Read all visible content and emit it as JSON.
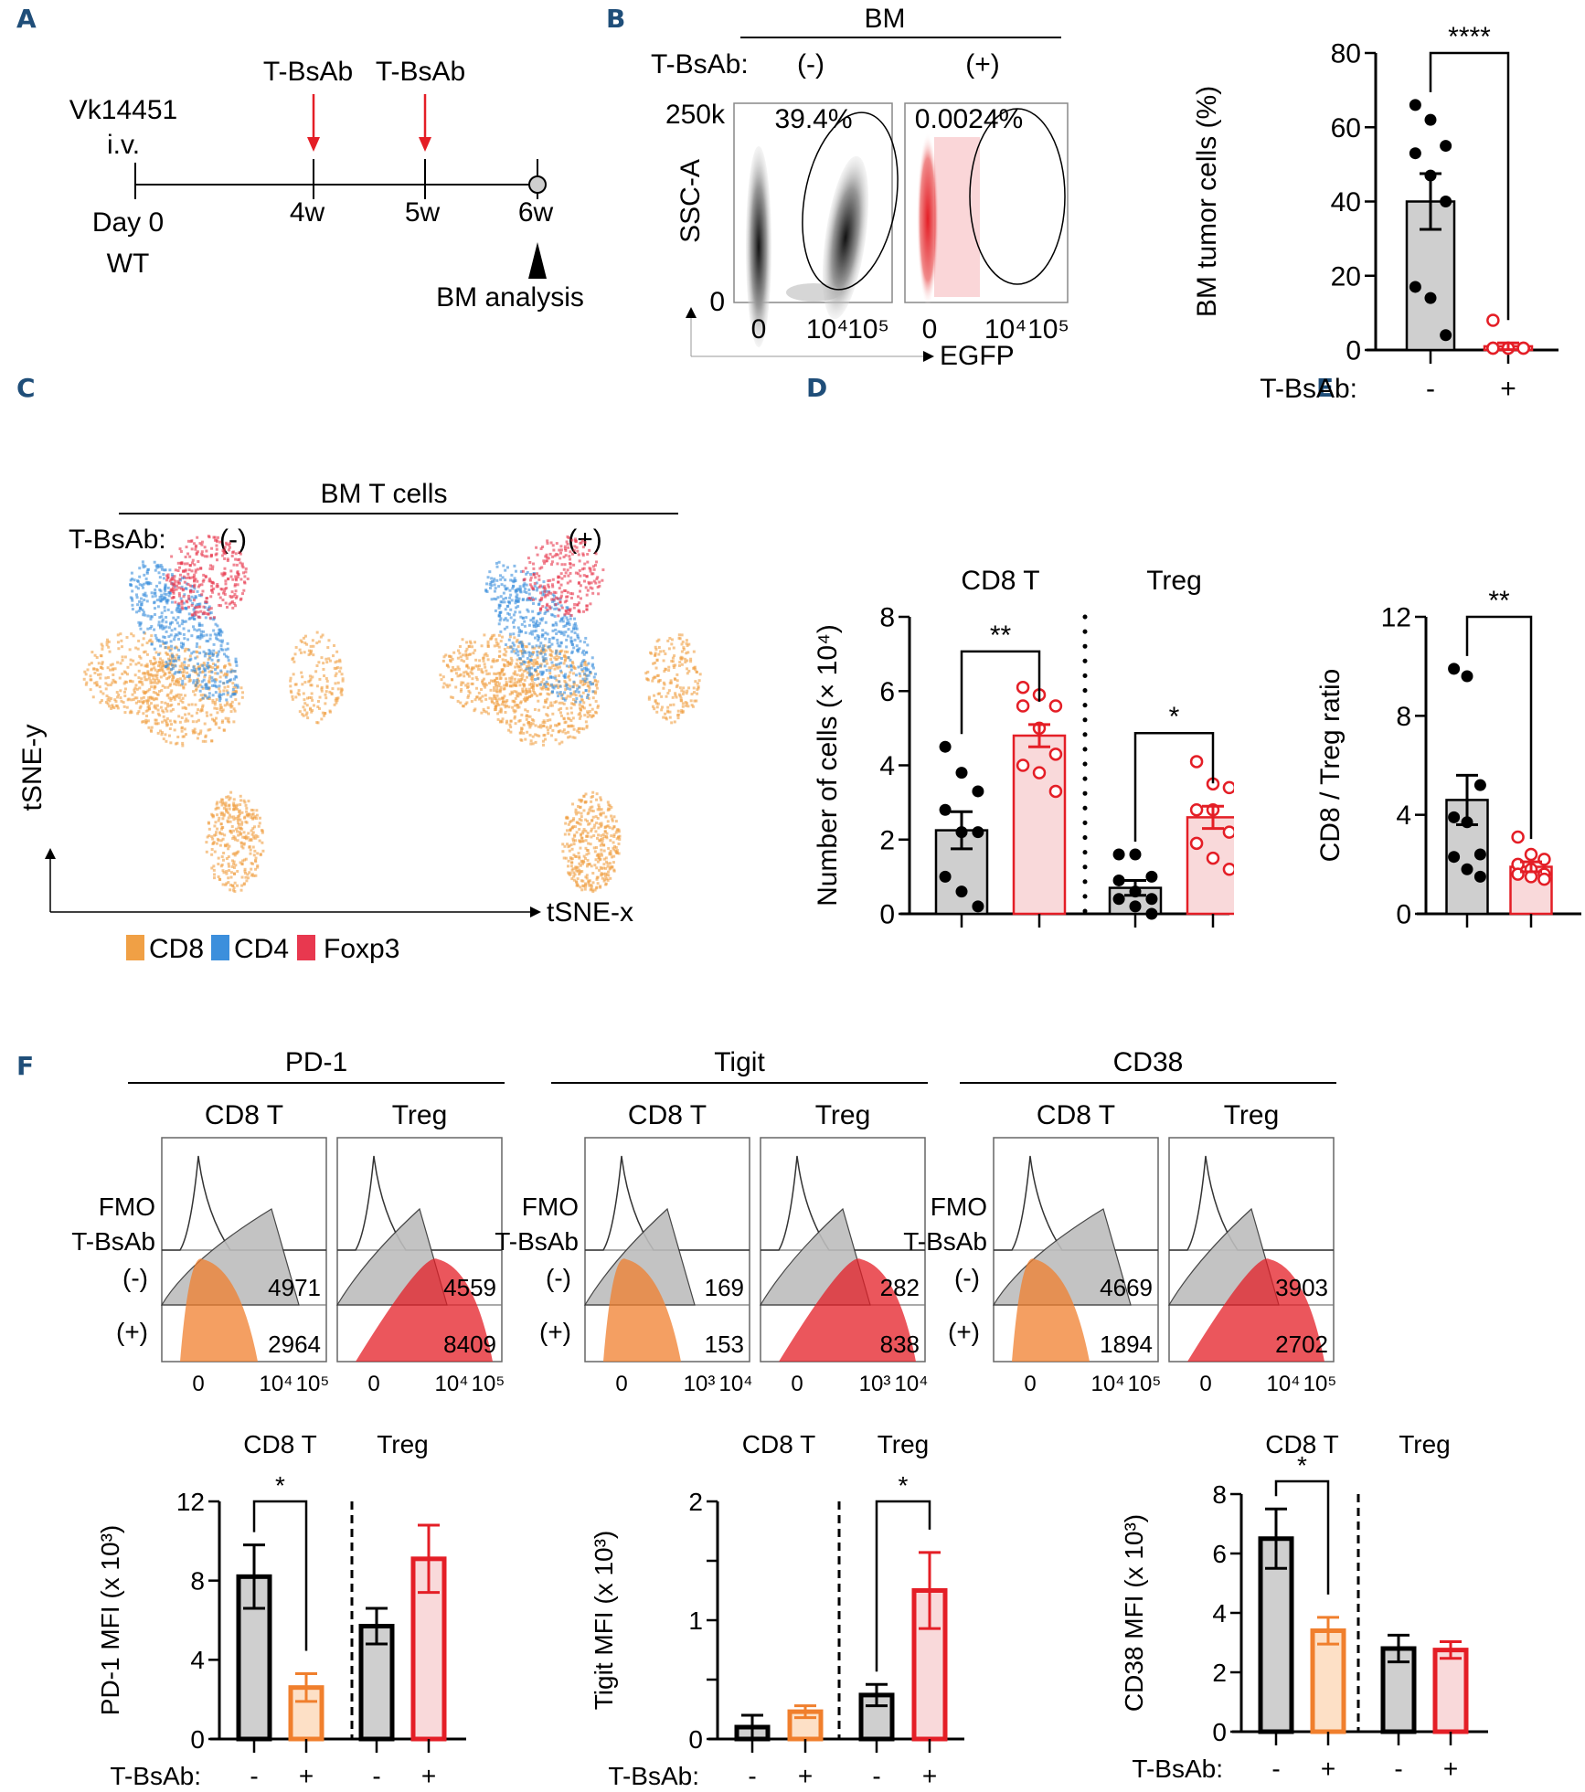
{
  "panels": {
    "A": "A",
    "B": "B",
    "C": "C",
    "D": "D",
    "E": "E",
    "F": "F"
  },
  "colors": {
    "grey_bar": "#cfcfcf",
    "red": "#e41e26",
    "red_fill": "#f9d9da",
    "orange": "#f07f2d",
    "orange_fill": "#fde0c6",
    "blue_label": "#1f4e79",
    "cd8": "#f0a045",
    "cd4": "#3c8fdc",
    "foxp3": "#e8384f"
  },
  "timeline": {
    "injection_label_1": "T-BsAb",
    "injection_label_2": "T-BsAb",
    "start_top": "Vk14451",
    "start_mid": "i.v.",
    "start_bottom_1": "Day 0",
    "start_bottom_2": "WT",
    "ticks": [
      "4w",
      "5w",
      "6w"
    ],
    "analysis_label": "BM analysis"
  },
  "flow_B": {
    "title": "BM",
    "treatment_label": "T-BsAb:",
    "conditions": [
      "(-)",
      "(+)"
    ],
    "gate_percent": [
      "39.4%",
      "0.0024%"
    ],
    "y_axis_label": "SSC-A",
    "y_ticks": [
      "250k",
      "0"
    ],
    "x_axis_label": "EGFP",
    "x_ticks": [
      "0",
      "10⁴",
      "10⁵"
    ]
  },
  "tsne_C": {
    "title": "BM T cells",
    "treatment_label": "T-BsAb:",
    "conditions": [
      "(-)",
      "(+)"
    ],
    "x_axis_label": "tSNE-x",
    "y_axis_label": "tSNE-y",
    "legend": [
      {
        "label": "CD8",
        "color": "#f0a045"
      },
      {
        "label": "CD4",
        "color": "#3c8fdc"
      },
      {
        "label": "Foxp3",
        "color": "#e8384f"
      }
    ]
  },
  "histograms_F": {
    "markers": [
      {
        "name": "PD-1",
        "x_ticks": [
          "0",
          "10⁴",
          "10⁵"
        ],
        "groups": [
          {
            "name": "CD8 T",
            "mfi_minus": "4971",
            "mfi_plus": "2964"
          },
          {
            "name": "Treg",
            "mfi_minus": "4559",
            "mfi_plus": "8409"
          }
        ]
      },
      {
        "name": "Tigit",
        "x_ticks": [
          "0",
          "10³",
          "10⁴"
        ],
        "groups": [
          {
            "name": "CD8 T",
            "mfi_minus": "169",
            "mfi_plus": "153"
          },
          {
            "name": "Treg",
            "mfi_minus": "282",
            "mfi_plus": "838"
          }
        ]
      },
      {
        "name": "CD38",
        "x_ticks": [
          "0",
          "10⁴",
          "10⁵"
        ],
        "groups": [
          {
            "name": "CD8 T",
            "mfi_minus": "4669",
            "mfi_plus": "1894"
          },
          {
            "name": "Treg",
            "mfi_minus": "3903",
            "mfi_plus": "2702"
          }
        ]
      }
    ],
    "row_labels": [
      "FMO",
      "T-BsAb",
      "(-)",
      "(+)"
    ]
  },
  "chart_data": [
    {
      "id": "B_bar",
      "type": "bar",
      "title": "",
      "ylabel": "BM tumor cells (%)",
      "xlabel": "T-BsAb:",
      "categories": [
        "-",
        "+"
      ],
      "values": [
        40,
        1
      ],
      "sem": [
        7.5,
        0.9
      ],
      "points": [
        [
          66,
          62,
          55,
          53,
          47,
          40,
          17,
          14,
          4
        ],
        [
          8,
          0.5,
          0.5,
          0.5,
          0.5,
          0.5,
          0.5,
          0.5
        ]
      ],
      "ylim": [
        0,
        80
      ],
      "yticks": [
        0,
        20,
        40,
        60,
        80
      ],
      "significance": [
        {
          "from": 0,
          "to": 1,
          "label": "****"
        }
      ]
    },
    {
      "id": "D_bar",
      "type": "bar",
      "ylabel": "Number of cells (× 10⁴)",
      "xlabel": "T-BsAb:",
      "group_labels": [
        "CD8 T",
        "Treg"
      ],
      "categories": [
        "-",
        "+",
        "-",
        "+"
      ],
      "values": [
        2.25,
        4.8,
        0.7,
        2.6
      ],
      "sem": [
        0.5,
        0.3,
        0.2,
        0.3
      ],
      "points": [
        [
          4.5,
          3.8,
          3.3,
          2.8,
          2.2,
          2.2,
          1.0,
          0.6,
          0.2
        ],
        [
          6.1,
          5.9,
          5.6,
          5.6,
          5.0,
          4.3,
          4.0,
          3.8,
          3.3
        ],
        [
          1.6,
          1.6,
          1.0,
          0.9,
          0.6,
          0.4,
          0.4,
          0.2,
          0.0
        ],
        [
          4.1,
          3.5,
          3.4,
          2.8,
          2.8,
          2.2,
          1.9,
          1.5,
          1.2
        ]
      ],
      "ylim": [
        0,
        8
      ],
      "yticks": [
        0,
        2,
        4,
        6,
        8
      ],
      "significance": [
        {
          "from": 0,
          "to": 1,
          "label": "**"
        },
        {
          "from": 2,
          "to": 3,
          "label": "*"
        }
      ]
    },
    {
      "id": "E_bar",
      "type": "bar",
      "ylabel": "CD8 / Treg ratio",
      "xlabel": "T-BsAb:",
      "categories": [
        "-",
        "+"
      ],
      "values": [
        4.6,
        1.9
      ],
      "sem": [
        1.0,
        0.2
      ],
      "points": [
        [
          9.9,
          9.6,
          5.2,
          3.9,
          3.7,
          2.4,
          2.3,
          1.8,
          1.5
        ],
        [
          3.1,
          2.4,
          2.2,
          2.0,
          1.8,
          1.6,
          1.6,
          1.5,
          1.4
        ]
      ],
      "ylim": [
        0,
        12
      ],
      "yticks": [
        0,
        4,
        8,
        12
      ],
      "significance": [
        {
          "from": 0,
          "to": 1,
          "label": "**"
        }
      ]
    },
    {
      "id": "F_PD1_bar",
      "type": "bar",
      "ylabel": "PD-1 MFI (x 10³)",
      "xlabel": "T-BsAb:",
      "group_labels": [
        "CD8 T",
        "Treg"
      ],
      "categories": [
        "-",
        "+",
        "-",
        "+"
      ],
      "values": [
        8.2,
        2.6,
        5.7,
        9.1
      ],
      "sem": [
        1.6,
        0.7,
        0.9,
        1.7
      ],
      "ylim": [
        0,
        12
      ],
      "yticks": [
        0,
        4,
        8,
        12
      ],
      "significance": [
        {
          "from": 0,
          "to": 1,
          "label": "*"
        }
      ]
    },
    {
      "id": "F_Tigit_bar",
      "type": "bar",
      "ylabel": "Tigit MFI (x 10³)",
      "xlabel": "T-BsAb:",
      "group_labels": [
        "CD8 T",
        "Treg"
      ],
      "categories": [
        "-",
        "+",
        "-",
        "+"
      ],
      "values": [
        0.1,
        0.23,
        0.37,
        1.25
      ],
      "sem": [
        0.1,
        0.05,
        0.09,
        0.32
      ],
      "ylim": [
        0,
        2
      ],
      "yticks": [
        0,
        1,
        2
      ],
      "minor_yticks": [
        0.5,
        1.5
      ],
      "significance": [
        {
          "from": 2,
          "to": 3,
          "label": "*"
        }
      ]
    },
    {
      "id": "F_CD38_bar",
      "type": "bar",
      "ylabel": "CD38 MFI (x 10³)",
      "xlabel": "T-BsAb:",
      "group_labels": [
        "CD8 T",
        "Treg"
      ],
      "categories": [
        "-",
        "+",
        "-",
        "+"
      ],
      "values": [
        6.5,
        3.4,
        2.8,
        2.75
      ],
      "sem": [
        1.0,
        0.45,
        0.45,
        0.28
      ],
      "ylim": [
        0,
        8
      ],
      "yticks": [
        0,
        2,
        4,
        6,
        8
      ],
      "significance": [
        {
          "from": 0,
          "to": 1,
          "label": "*"
        }
      ]
    }
  ]
}
